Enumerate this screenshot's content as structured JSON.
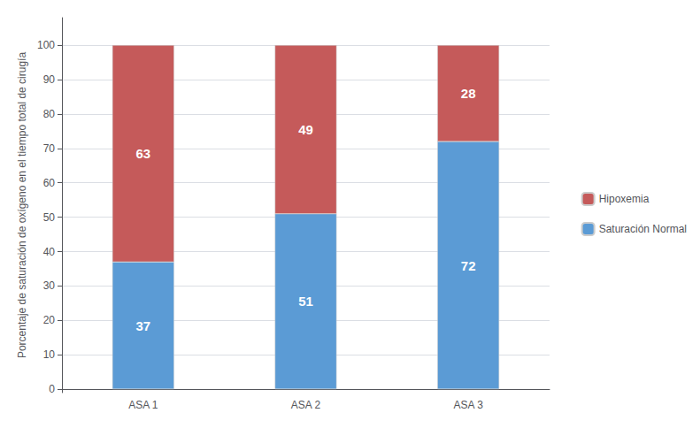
{
  "chart_data": {
    "type": "bar",
    "categories": [
      "ASA 1",
      "ASA 2",
      "ASA 3"
    ],
    "series": [
      {
        "name": "Saturación Normal",
        "color": "#5B9BD5",
        "values": [
          37,
          51,
          72
        ]
      },
      {
        "name": "Hipoxemia",
        "color": "#C55A5A",
        "values": [
          63,
          49,
          28
        ]
      }
    ],
    "ylabel": "Porcentaje de saturación de oxígeno en el tiempo total de cirugía",
    "ylim": [
      -1,
      108
    ],
    "yticks": [
      0,
      10,
      20,
      30,
      40,
      50,
      60,
      70,
      80,
      90,
      100
    ],
    "grid": true,
    "stacked": true,
    "data_labels": true,
    "legend": "right"
  }
}
